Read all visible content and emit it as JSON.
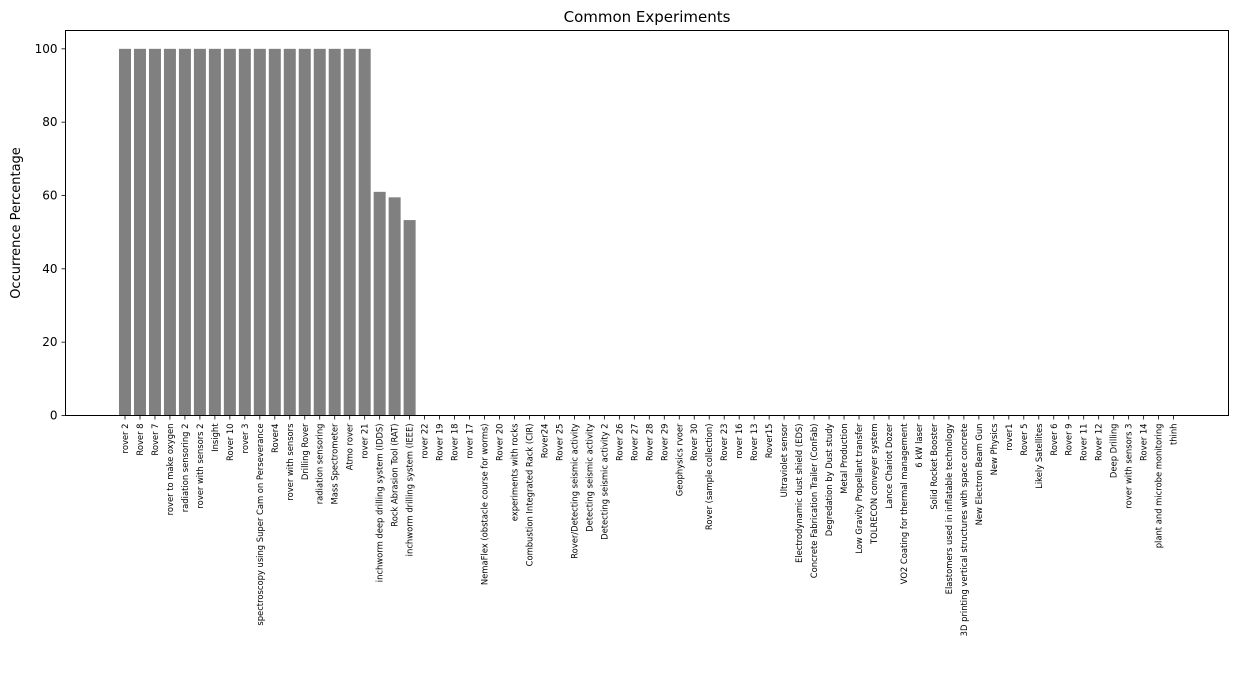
{
  "chart_data": {
    "type": "bar",
    "title": "Common Experiments",
    "xlabel": "",
    "ylabel": "Occurrence Percentage",
    "ylim": [
      0,
      105
    ],
    "yticks": [
      0,
      20,
      40,
      60,
      80,
      100
    ],
    "grid": false,
    "bar_color": "#808080",
    "categories": [
      "rover 2",
      "Rover 8",
      "Rover 7",
      "rover to make oxygen",
      "radiation sensoring 2",
      "rover with sensors 2",
      "Insight",
      "Rover 10",
      "rover 3",
      "spectroscopy using Super Cam on Perseverance",
      "Rover4",
      "rover with sensors",
      "Drilling Rover",
      "radiation sensoring",
      "Mass Spectrometer",
      "Atmo rover",
      "rover 21",
      "inchworm deep drilling system (IDDS)",
      "Rock Abrasion Tool (RAT)",
      "inchworm drilling system (IEEE)",
      "rover 22",
      "Rover 19",
      "Rover 18",
      "rover  17",
      "NemaFlex (obstacle course for worms)",
      "Rover 20",
      "experiments with rocks",
      "Combustion Integrated Rack (CIR)",
      "Rover24",
      "Rover 25",
      "Rover/Detecting seismic activity",
      "Detecting seismic activity",
      "Detecting seismic activity 2",
      "Rover 26",
      "Rover 27",
      "Rover 28",
      "Rover 29",
      "Geophysics rvoer",
      "Rover 30",
      "Rover (sample collection)",
      "Rover 23",
      "rover 16",
      "Rover 13",
      "Rover15",
      "Ultraviolet sensor",
      "Electrodynamic dust shield (EDS)",
      "Concrete Fabrication Trailer (ConFab)",
      "Degredation by Dust study",
      "Metal Production",
      "Low Gravity Propellant transfer",
      "TOLRECON conveyer system",
      "Lance Chariot Dozer",
      "VO2 Coating for thermal management",
      "6 kW laser",
      "Solid Rocket Booster",
      "Elastomers used in inflatable technology",
      "3D printing vertical structures with space concrete",
      "New Electron Beam Gun",
      "New Physics",
      "rover1",
      "Rover 5",
      "Likely Satellites",
      "Rover 6",
      "Rover 9",
      "Rover 11",
      "Rover 12",
      "Deep Drilling",
      "rover with sensors 3",
      "Rover 14",
      "plant and microbe monitoring",
      "thinh"
    ],
    "values": [
      100,
      100,
      100,
      100,
      100,
      100,
      100,
      100,
      100,
      100,
      100,
      100,
      100,
      100,
      100,
      100,
      100,
      61,
      59.5,
      53.3,
      0,
      0,
      0,
      0,
      0,
      0,
      0,
      0,
      0,
      0,
      0,
      0,
      0,
      0,
      0,
      0,
      0,
      0,
      0,
      0,
      0,
      0,
      0,
      0,
      0,
      0,
      0,
      0,
      0,
      0,
      0,
      0,
      0,
      0,
      0,
      0,
      0,
      0,
      0,
      0,
      0,
      0,
      0,
      0,
      0,
      0,
      0,
      0,
      0,
      0,
      0
    ]
  }
}
